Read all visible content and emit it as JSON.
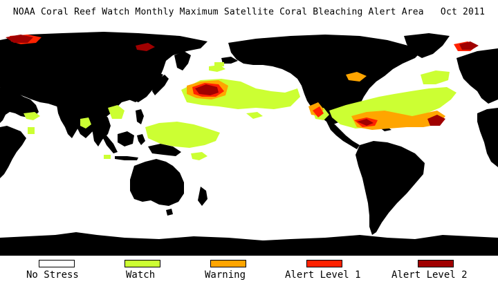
{
  "title": "NOAA Coral Reef Watch Monthly Maximum Satellite Coral Bleaching Alert Area",
  "date": "Oct 2011",
  "colors": {
    "land": "#000000",
    "ocean": "#ffffff",
    "no_stress": "#ffffff",
    "watch": "#ccff33",
    "warning": "#ffa500",
    "alert_level_1": "#ff2200",
    "alert_level_2": "#a00000"
  },
  "legend": [
    {
      "label": "No Stress",
      "color": "#ffffff"
    },
    {
      "label": "Watch",
      "color": "#ccff33"
    },
    {
      "label": "Warning",
      "color": "#ffa500"
    },
    {
      "label": "Alert Level 1",
      "color": "#ff2200"
    },
    {
      "label": "Alert Level 2",
      "color": "#a00000"
    }
  ]
}
